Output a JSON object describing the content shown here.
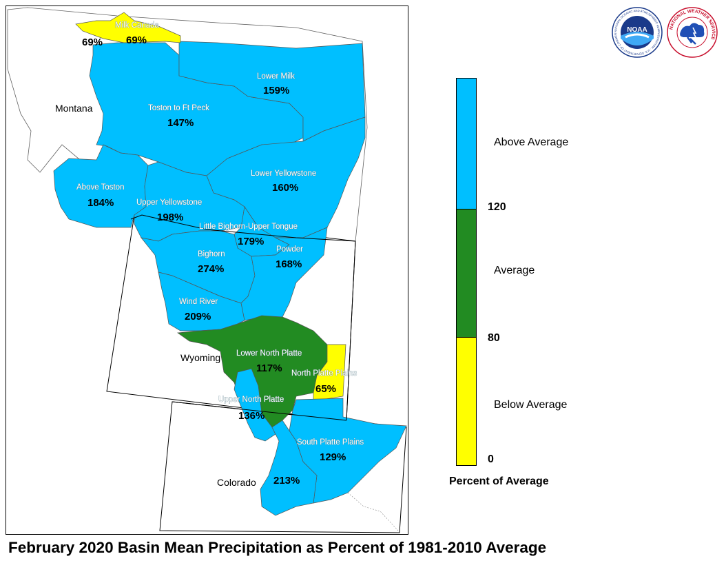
{
  "title": "February 2020 Basin Mean Precipitation as Percent of 1981-2010 Average",
  "colors": {
    "above": "#00bfff",
    "average": "#228b22",
    "below": "#ffff00",
    "state_line": "#000000"
  },
  "states": {
    "montana": "Montana",
    "wyoming": "Wyoming",
    "colorado": "Colorado"
  },
  "basins": {
    "milk_canada": {
      "name": "Milk Canada",
      "percent": "69%",
      "category": "below"
    },
    "milk_canada_west": {
      "percent": "69%",
      "category": "below"
    },
    "lower_milk": {
      "name": "Lower Milk",
      "percent": "159%",
      "category": "above"
    },
    "toston_ft_peck": {
      "name": "Toston to Ft Peck",
      "percent": "147%",
      "category": "above"
    },
    "above_toston": {
      "name": "Above Toston",
      "percent": "184%",
      "category": "above"
    },
    "lower_yellowstone": {
      "name": "Lower Yellowstone",
      "percent": "160%",
      "category": "above"
    },
    "upper_yellowstone": {
      "name": "Upper Yellowstone",
      "percent": "198%",
      "category": "above"
    },
    "little_bighorn": {
      "name": "Little Bighorn-Upper Tongue",
      "percent": "179%",
      "category": "above"
    },
    "bighorn": {
      "name": "Bighorn",
      "percent": "274%",
      "category": "above"
    },
    "powder": {
      "name": "Powder",
      "percent": "168%",
      "category": "above"
    },
    "wind_river": {
      "name": "Wind River",
      "percent": "209%",
      "category": "above"
    },
    "lower_north_platte": {
      "name": "Lower North Platte",
      "percent": "117%",
      "category": "average"
    },
    "north_platte_plains": {
      "name": "North Platte Plains",
      "percent": "65%",
      "category": "below"
    },
    "upper_north_platte": {
      "name": "Upper North Platte",
      "percent": "136%",
      "category": "above"
    },
    "south_platte_plains": {
      "name": "South Platte Plains",
      "percent": "129%",
      "category": "above"
    },
    "south_platte_mountains": {
      "percent": "213%",
      "category": "above"
    }
  },
  "legend": {
    "title": "Percent of Average",
    "categories": [
      {
        "label": "Above Average",
        "color": "#00bfff"
      },
      {
        "label": "Average",
        "color": "#228b22"
      },
      {
        "label": "Below Average",
        "color": "#ffff00"
      }
    ],
    "ticks": [
      "120",
      "80",
      "0"
    ]
  },
  "logos": {
    "noaa": {
      "text": "NOAA",
      "ring_text": "NATIONAL OCEANIC AND ATMOSPHERIC ADMINISTRATION · U.S. DEPARTMENT OF COMMERCE"
    },
    "nws": {
      "ring_text": "NATIONAL WEATHER SERVICE"
    }
  }
}
